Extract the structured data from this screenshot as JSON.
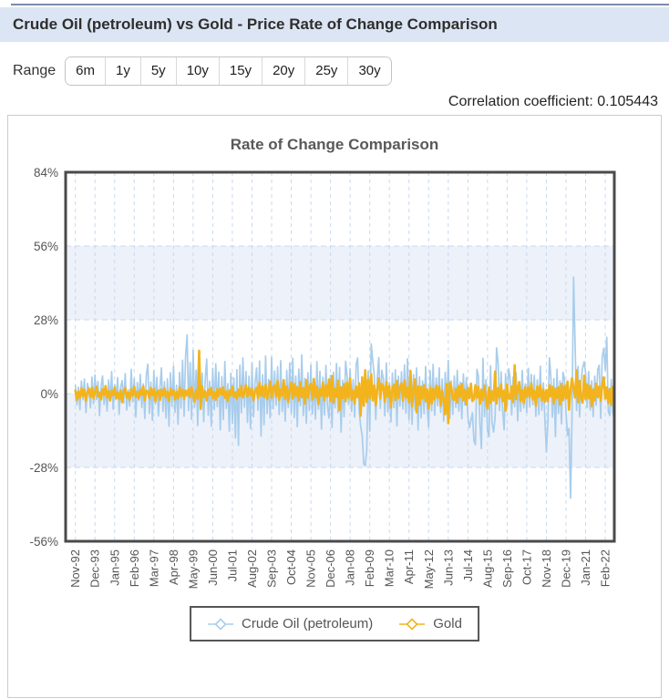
{
  "page": {
    "title_bar": {
      "title": "Crude Oil (petroleum) vs Gold - Price Rate of Change Comparison"
    },
    "range_selector": {
      "label": "Range",
      "options": [
        "6m",
        "1y",
        "5y",
        "10y",
        "15y",
        "20y",
        "25y",
        "30y"
      ]
    },
    "correlation_text": "Correlation coefficient: 0.105443"
  },
  "colors": {
    "header_bg": "#dce5f3",
    "top_rule": "#7b8cab",
    "band_fill": "#edf1f9",
    "grid_dash": "#c9d9ee",
    "plot_border": "#4a4a4a",
    "axis_text": "#555555",
    "oil_line": "#a8cdec",
    "gold_line": "#f2b31c"
  },
  "chart_data": {
    "type": "line",
    "title": "Rate of Change Comparison",
    "xlabel": "",
    "ylabel": "",
    "ylim": [
      -56,
      84
    ],
    "y_ticks": [
      "84%",
      "56%",
      "28%",
      "0%",
      "-28%",
      "-56%"
    ],
    "y_tick_values": [
      84,
      56,
      28,
      0,
      -28,
      -56
    ],
    "shaded_bands": [
      [
        56,
        28
      ],
      [
        0,
        -28
      ]
    ],
    "grid": "dashed",
    "legend_position": "bottom",
    "x_tick_labels": [
      "Nov-92",
      "Dec-93",
      "Jan-95",
      "Feb-96",
      "Mar-97",
      "Apr-98",
      "May-99",
      "Jun-00",
      "Jul-01",
      "Aug-02",
      "Sep-03",
      "Oct-04",
      "Nov-05",
      "Dec-06",
      "Jan-08",
      "Feb-09",
      "Mar-10",
      "Apr-11",
      "May-12",
      "Jun-13",
      "Jul-14",
      "Aug-15",
      "Sep-16",
      "Oct-17",
      "Nov-18",
      "Dec-19",
      "Jan-21",
      "Feb-22"
    ],
    "months_per_x_tick": 13,
    "series": [
      {
        "name": "Crude Oil (petroleum)",
        "color": "#a8cdec",
        "values": [
          3.1,
          -4.2,
          2.5,
          -6.1,
          4.8,
          -2.3,
          5.5,
          -7.2,
          3.9,
          1.2,
          -5.4,
          6.3,
          -3.8,
          7.1,
          -2.2,
          4.6,
          -8.3,
          2.9,
          6.7,
          -4.1,
          1.8,
          -6.6,
          5.2,
          -2.7,
          8.4,
          -5.9,
          3.3,
          -1.7,
          6.1,
          -7.8,
          2.4,
          4.9,
          -3.5,
          7.6,
          -6.2,
          1.5,
          -4.7,
          9.2,
          -3.1,
          5.8,
          -8.9,
          4.2,
          -2.6,
          7.3,
          -5.3,
          3.7,
          -9.4,
          6.8,
          11.2,
          -7.5,
          4.4,
          -10.1,
          8.7,
          -3.9,
          6.2,
          -8.4,
          2.1,
          9.8,
          -6.7,
          4.5,
          -9.2,
          5.6,
          -12.3,
          7.9,
          -4.8,
          10.4,
          -7.1,
          3.2,
          -11.6,
          8.1,
          -5.5,
          12.7,
          -8.6,
          14.2,
          22.3,
          -6.4,
          11.8,
          -9.7,
          16.5,
          -5.2,
          8.9,
          -12.1,
          7.4,
          -4.3,
          7.8,
          -10.6,
          5.3,
          13.1,
          -8.2,
          4.7,
          -12.4,
          9.6,
          -6.1,
          11.3,
          -4.9,
          8.2,
          -13.7,
          6.4,
          -9.8,
          12.2,
          -5.6,
          3.8,
          -14.2,
          7.7,
          -11.3,
          5.9,
          -16.8,
          9.1,
          -19.6,
          10.8,
          -7.3,
          13.6,
          -5.1,
          8.4,
          -10.9,
          6.6,
          -13.2,
          11.7,
          -8.8,
          4.2,
          9.7,
          -6.3,
          12.4,
          -16.1,
          7.2,
          -11.8,
          14.3,
          -7.6,
          5.4,
          -9.2,
          13.8,
          -5.7,
          8.6,
          -4.4,
          10.2,
          -7.9,
          12.5,
          -6.8,
          4.1,
          -10.4,
          8.8,
          -5.2,
          11.6,
          -7.4,
          13.4,
          -9.1,
          6.7,
          -12.6,
          9.3,
          -4.6,
          14.7,
          -8.3,
          5.8,
          -11.2,
          7.9,
          -6.4,
          10.9,
          -7.7,
          4.3,
          -9.6,
          12.1,
          -5.9,
          8.5,
          -13.4,
          6.2,
          -8.1,
          10.7,
          -4.8,
          -9.3,
          6.9,
          -12.8,
          8.2,
          -5.4,
          11.4,
          -7.2,
          9.9,
          -14.6,
          5.1,
          -8.7,
          12.3,
          6.8,
          -4.1,
          9.4,
          -6.7,
          5.3,
          -8.9,
          11.2,
          13.5,
          -6.2,
          -12.4,
          -15.8,
          -26.7,
          -27.3,
          -21.5,
          8.6,
          -14.2,
          18.9,
          12.4,
          7.1,
          -9.8,
          6.3,
          13.7,
          -5.6,
          8.9,
          5.7,
          -8.4,
          11.6,
          -6.9,
          4.2,
          -10.7,
          7.8,
          -5.3,
          9.1,
          -12.2,
          6.6,
          -4.7,
          8.3,
          -5.8,
          10.9,
          -7.4,
          13.2,
          -9.9,
          5.4,
          -11.6,
          7.2,
          -6.1,
          9.7,
          -13.8,
          6.4,
          -9.2,
          4.8,
          -7.6,
          10.3,
          -5.1,
          -12.7,
          8.7,
          -6.5,
          11.1,
          -8.2,
          5.9,
          -4.5,
          9.8,
          -7.1,
          5.6,
          -10.4,
          8.1,
          -5.7,
          12.6,
          -9.3,
          4.9,
          -7.8,
          6.7,
          -5.2,
          8.9,
          -6.6,
          4.4,
          -9.5,
          7.5,
          -4.3,
          6.1,
          -8.5,
          -12.9,
          -10.2,
          -7.3,
          -17.9,
          -19.4,
          9.2,
          6.8,
          -11.6,
          -20.8,
          13.4,
          -8.7,
          5.3,
          -14.1,
          -16.3,
          10.6,
          -10.8,
          -14.6,
          -9.2,
          17.4,
          11.8,
          -6.4,
          8.3,
          -5.9,
          -13.7,
          7.6,
          -4.8,
          9.4,
          5.8,
          -8.1,
          6.3,
          -4.9,
          7.9,
          -10.3,
          4.6,
          -6.7,
          8.8,
          -5.4,
          3.7,
          -7.2,
          9.6,
          -5.1,
          7.3,
          -4.2,
          6.9,
          -8.6,
          5.2,
          -7.9,
          10.4,
          -6.3,
          4.1,
          -9.7,
          -22.1,
          -10.8,
          13.6,
          6.4,
          -8.9,
          5.7,
          -16.3,
          9.2,
          -7.5,
          4.8,
          -11.4,
          8.1,
          5.6,
          -7.2,
          -15.8,
          -13.2,
          -39.6,
          -8.1,
          44.2,
          19.8,
          -6.4,
          10.3,
          -8.8,
          5.1,
          9.7,
          12.1,
          7.8,
          -5.3,
          8.4,
          -6.2,
          4.9,
          -8.7,
          6.6,
          -4.4,
          9.2,
          10.8,
          -9.4,
          13.7,
          17.2,
          8.9,
          21.4,
          -6.8,
          -8.3,
          5.4,
          -7.1,
          -9.6
        ]
      },
      {
        "name": "Gold",
        "color": "#f2b31c",
        "values": [
          1.2,
          -2.4,
          0.8,
          -1.6,
          2.1,
          -0.9,
          1.5,
          -2.8,
          0.6,
          1.9,
          -1.3,
          2.3,
          -1.8,
          0.7,
          2.6,
          -1.1,
          0.4,
          -2.2,
          1.7,
          -0.5,
          2.9,
          -1.4,
          0.9,
          -2.6,
          1.1,
          -0.6,
          2.4,
          -1.9,
          0.5,
          -2.1,
          1.3,
          -3.2,
          0.8,
          2.2,
          -1.5,
          0.4,
          -2.3,
          1.6,
          -0.8,
          2.7,
          -1.2,
          0.6,
          -1.9,
          1.4,
          -0.4,
          2.8,
          -2.5,
          1.1,
          0.9,
          -1.7,
          2.2,
          -0.6,
          1.8,
          -2.9,
          0.5,
          1.2,
          -2.4,
          1.6,
          -0.8,
          2.1,
          -1.4,
          0.8,
          -2.7,
          1.9,
          -0.5,
          1.3,
          -2.2,
          0.7,
          -1.8,
          2.4,
          -0.9,
          1.5,
          -2.1,
          1.2,
          -0.7,
          1.8,
          -1.3,
          2.5,
          -0.6,
          -3.1,
          1.4,
          -1.9,
          16.3,
          -5.8,
          2.8,
          -1.2,
          0.9,
          -2.6,
          1.5,
          -0.4,
          2.1,
          -1.8,
          0.6,
          -2.3,
          1.7,
          -0.9,
          1.9,
          -0.5,
          2.4,
          -1.6,
          0.8,
          -2.8,
          1.2,
          -0.7,
          2.6,
          -1.3,
          0.5,
          -2.1,
          1.6,
          -0.9,
          2.9,
          -1.4,
          0.7,
          3.2,
          -1.1,
          2.3,
          -0.6,
          1.8,
          -2.5,
          0.9,
          2.2,
          -1.7,
          4.1,
          -0.8,
          2.7,
          -1.3,
          3.4,
          -2.1,
          0.9,
          4.6,
          -1.6,
          2.4,
          3.1,
          -1.2,
          4.8,
          -2.4,
          1.6,
          -0.7,
          5.2,
          -1.9,
          2.8,
          -3.3,
          1.4,
          4.2,
          -1.8,
          3.6,
          -0.9,
          2.5,
          -2.7,
          4.4,
          -1.3,
          2.1,
          -3.8,
          5.1,
          -1.6,
          2.9,
          3.8,
          -2.2,
          5.6,
          -1.4,
          2.7,
          -4.1,
          1.9,
          -0.8,
          4.3,
          -2.6,
          3.2,
          -1.1,
          5.4,
          -2.8,
          6.7,
          -3.5,
          1.8,
          -1.2,
          4.9,
          -6.3,
          2.4,
          -1.7,
          3.6,
          -2.9,
          4.2,
          -1.6,
          5.8,
          -2.3,
          1.1,
          -3.7,
          2.8,
          -1.4,
          3.9,
          -8.4,
          6.2,
          -4.6,
          8.9,
          -3.2,
          5.3,
          -1.8,
          7.4,
          -2.6,
          3.1,
          -4.4,
          2.2,
          5.8,
          -1.9,
          3.7,
          2.6,
          -3.1,
          4.5,
          -1.2,
          2.9,
          -5.2,
          1.6,
          3.4,
          -2.4,
          4.8,
          -1.7,
          2.1,
          3.9,
          -2.7,
          5.1,
          -1.5,
          2.3,
          -3.4,
          8.6,
          -4.9,
          1.2,
          5.4,
          -7.1,
          2.8,
          -4.2,
          2.6,
          -1.8,
          3.3,
          -2.9,
          1.7,
          -5.6,
          2.4,
          -3.8,
          1.9,
          -2.2,
          3.1,
          -1.6,
          2.8,
          -4.7,
          1.3,
          -2.5,
          -7.8,
          3.6,
          -11.2,
          4.1,
          2.7,
          -1.9,
          -2.3,
          1.8,
          -3.4,
          2.9,
          -1.2,
          3.7,
          -2.6,
          1.4,
          -4.1,
          2.2,
          -1.7,
          3.8,
          -2.8,
          -2.1,
          3.2,
          -1.6,
          2.6,
          -3.9,
          1.5,
          -2.4,
          3.1,
          -1.8,
          -5.7,
          2.3,
          -3.5,
          0.9,
          -2.6,
          8.4,
          -3.8,
          2.1,
          -1.4,
          3.6,
          -2.9,
          1.2,
          -6.5,
          3.4,
          -1.8,
          -1.9,
          2.7,
          -3.2,
          10.8,
          -2.1,
          1.6,
          4.4,
          -2.8,
          1.3,
          -3.6,
          2.5,
          -1.2,
          2.3,
          -1.5,
          3.9,
          -2.2,
          1.1,
          -4.6,
          2.8,
          -1.3,
          3.2,
          -2.7,
          1.6,
          -3.1,
          1.4,
          -2.9,
          3.3,
          -1.1,
          2.6,
          -3.7,
          1.9,
          -1.6,
          2.4,
          -4.2,
          3.7,
          -2.5,
          2.9,
          -1.8,
          4.6,
          -6.1,
          1.7,
          5.8,
          2.1,
          -1.5,
          8.9,
          -3.2,
          4.8,
          -1.9,
          -3.4,
          6.8,
          -2.1,
          3.5,
          -1.7,
          2.9,
          -4.8,
          1.6,
          -2.6,
          3.8,
          -1.4,
          2.7,
          -2.8,
          3.1,
          6.2,
          -1.9,
          2.4,
          -3.6,
          1.8,
          -4.3,
          2.6,
          -1.7
        ]
      }
    ]
  }
}
